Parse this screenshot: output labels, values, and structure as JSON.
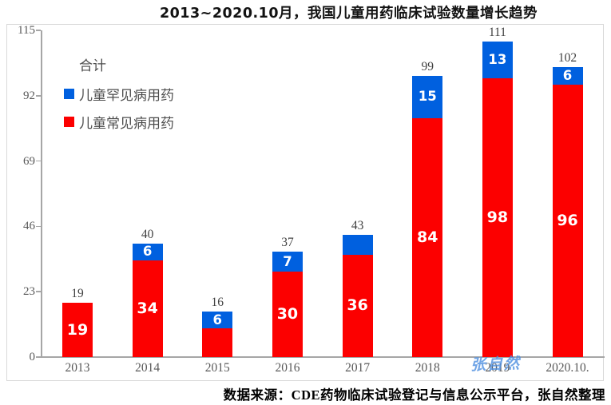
{
  "title": "2013~2020.10月，我国儿童用药临床试验数量增长趋势",
  "legend": {
    "items": [
      {
        "label": "合计",
        "swatch": null
      },
      {
        "label": "儿童罕见病用药",
        "swatch": "#0060DF"
      },
      {
        "label": "儿童常见病用药",
        "swatch": "#FC0000"
      }
    ]
  },
  "watermark": "张自然",
  "source": "数据来源：CDE药物临床试验登记与信息公示平台，张自然整理",
  "colors": {
    "red": "#FC0000",
    "blue": "#0060DF",
    "axis": "#A6A6A6",
    "tick_label": "#595959",
    "total_label": "#404040",
    "frame_border": "#D9D9D9",
    "watermark": "#4E8FE0"
  },
  "chart_data": {
    "type": "bar",
    "stacked": true,
    "title": "2013~2020.10月，我国儿童用药临床试验数量增长趋势",
    "categories": [
      "2013",
      "2014",
      "2015",
      "2016",
      "2017",
      "2018",
      "2019",
      "2020.10."
    ],
    "series": [
      {
        "name": "儿童常见病用药",
        "color": "#FC0000",
        "values": [
          19,
          34,
          10,
          30,
          36,
          84,
          98,
          96
        ],
        "data_labels": [
          "19",
          "34",
          "",
          "30",
          "36",
          "84",
          "98",
          "96"
        ]
      },
      {
        "name": "儿童罕见病用药",
        "color": "#0060DF",
        "values": [
          0,
          6,
          6,
          7,
          7,
          15,
          13,
          6
        ],
        "data_labels": [
          "",
          "6",
          "6",
          "7",
          "",
          "15",
          "13",
          "6"
        ]
      }
    ],
    "totals": [
      19,
      40,
      16,
      37,
      43,
      99,
      111,
      102
    ],
    "xlabel": "",
    "ylabel": "",
    "ylim": [
      0,
      115
    ],
    "yticks": [
      0,
      23,
      46,
      69,
      92,
      115
    ],
    "grid": false,
    "legend_position": "top-left-inside",
    "legend_entries": [
      "合计",
      "儿童罕见病用药",
      "儿童常见病用药"
    ]
  }
}
